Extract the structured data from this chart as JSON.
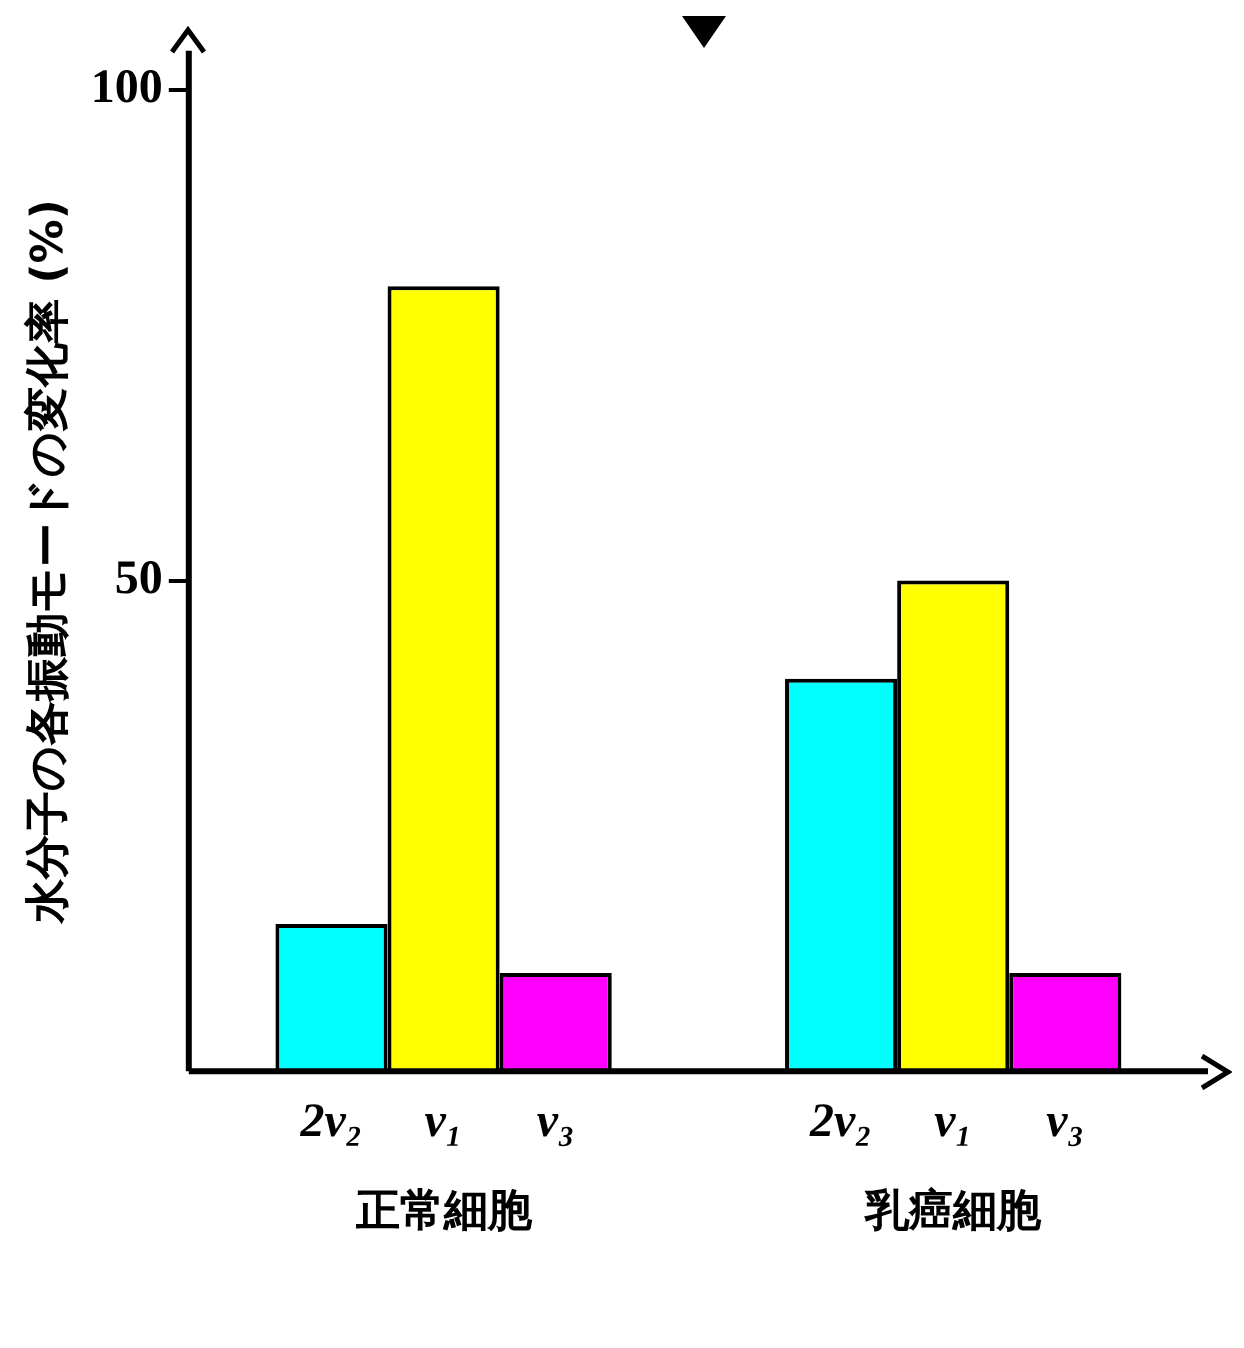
{
  "chart_data": {
    "type": "bar",
    "ylabel": "水分子の各振動モードの変化率 (%)",
    "categories": [
      "正常細胞",
      "乳癌細胞"
    ],
    "series": [
      {
        "name": "2ν₂",
        "color": "#00ffff",
        "values": [
          15,
          40
        ]
      },
      {
        "name": "ν₁",
        "color": "#ffff00",
        "values": [
          80,
          50
        ]
      },
      {
        "name": "ν₃",
        "color": "#ff00ff",
        "values": [
          10,
          10
        ]
      }
    ],
    "ylim": [
      0,
      104
    ],
    "yticks": [
      50,
      100
    ]
  }
}
